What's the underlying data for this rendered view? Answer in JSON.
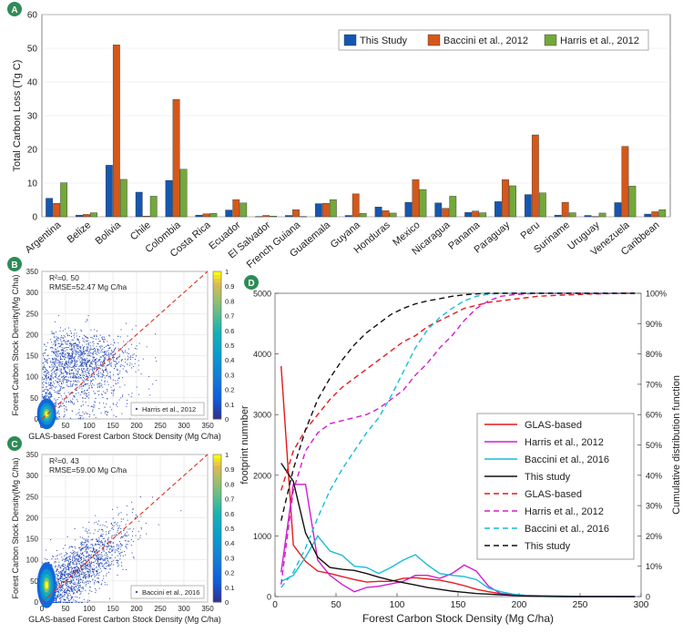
{
  "colors": {
    "this_study": "#1557b0",
    "baccini": "#d4581a",
    "harris": "#73a83a",
    "glas": "#e41a1c",
    "harris_curve": "#d11dd1",
    "baccini_curve": "#17bcd8",
    "this_curve": "#111111",
    "diag": "#e03020",
    "panel_badge": "#2e8b57"
  },
  "chart_data": [
    {
      "id": "A",
      "type": "bar",
      "panel_label": "A",
      "ylabel": "Total Carbon Loss (Tg C)",
      "ylim": [
        0,
        60
      ],
      "yticks": [
        0,
        10,
        20,
        30,
        40,
        50,
        60
      ],
      "categories": [
        "Argentina",
        "Belize",
        "Bolivia",
        "Chile",
        "Colombia",
        "Costa Rica",
        "Ecuador",
        "El Salvador",
        "French Guiana",
        "Guatemala",
        "Guyana",
        "Honduras",
        "Mexico",
        "Nicaragua",
        "Panama",
        "Paraguay",
        "Peru",
        "Suriname",
        "Uruguay",
        "Venezuela",
        "Caribbean"
      ],
      "series": [
        {
          "name": "This Study",
          "values": [
            5.5,
            0.5,
            15.3,
            7.3,
            10.8,
            0.5,
            2.0,
            0.1,
            0.4,
            3.9,
            0.4,
            2.9,
            4.3,
            4.1,
            1.3,
            4.5,
            6.6,
            0.5,
            0.4,
            4.2,
            0.8
          ]
        },
        {
          "name": "Baccini et al., 2012",
          "values": [
            4.0,
            0.7,
            51.0,
            0.2,
            34.8,
            0.9,
            5.1,
            0.4,
            2.1,
            4.0,
            6.8,
            1.8,
            11.0,
            2.5,
            1.7,
            11.0,
            24.3,
            4.3,
            0.1,
            20.9,
            1.5
          ]
        },
        {
          "name": "Harris et al., 2012",
          "values": [
            10.1,
            1.2,
            11.1,
            6.1,
            14.1,
            1.0,
            4.1,
            0.2,
            0.1,
            5.1,
            1.0,
            1.1,
            8.1,
            6.1,
            1.2,
            9.2,
            7.1,
            1.2,
            1.1,
            9.1,
            2.1
          ]
        }
      ]
    },
    {
      "id": "B",
      "type": "scatter",
      "panel_label": "B",
      "xlabel": "GLAS-based Forest Carbon Stock Density (Mg C/ha)",
      "ylabel": "Forest Carbon Stock Density(Mg C/ha)",
      "xlim": [
        0,
        350
      ],
      "ylim": [
        0,
        350
      ],
      "ticks": [
        0,
        50,
        100,
        150,
        200,
        250,
        300,
        350
      ],
      "stats": [
        "R²=0. 50",
        "RMSE=52.47 Mg C/ha"
      ],
      "legend": "Harris et al., 2012",
      "colorbar_ticks": [
        "0",
        "0.1",
        "0.2",
        "0.3",
        "0.4",
        "0.5",
        "0.6",
        "0.7",
        "0.8",
        "0.9",
        "1"
      ]
    },
    {
      "id": "C",
      "type": "scatter",
      "panel_label": "C",
      "xlabel": "GLAS-based Forest Carbon Stock Density (Mg C/ha)",
      "ylabel": "Forest Carbon Stock Density(Mg C/ha)",
      "xlim": [
        0,
        350
      ],
      "ylim": [
        0,
        350
      ],
      "ticks": [
        0,
        50,
        100,
        150,
        200,
        250,
        300,
        350
      ],
      "stats": [
        "R²=0. 43",
        "RMSE=59.00 Mg C/ha"
      ],
      "legend": "Baccini et al., 2016",
      "colorbar_ticks": [
        "0",
        "0.1",
        "0.2",
        "0.3",
        "0.4",
        "0.5",
        "0.6",
        "0.7",
        "0.8",
        "0.9",
        "1"
      ]
    },
    {
      "id": "D",
      "type": "line",
      "panel_label": "D",
      "xlabel": "Forest Carbon Stock Density (Mg C/ha)",
      "ylabel": "footprint numnber",
      "y2label": "Cumulative distribution function",
      "xlim": [
        0,
        300
      ],
      "ylim": [
        0,
        5000
      ],
      "xticks": [
        0,
        50,
        100,
        150,
        200,
        250,
        300
      ],
      "yticks": [
        0,
        1000,
        2000,
        3000,
        4000,
        5000
      ],
      "y2ticks": [
        "0",
        "10%",
        "20%",
        "30%",
        "40%",
        "50%",
        "60%",
        "70%",
        "80%",
        "90%",
        "100%"
      ],
      "x": [
        5,
        15,
        25,
        35,
        45,
        55,
        65,
        75,
        85,
        95,
        105,
        115,
        125,
        135,
        145,
        155,
        165,
        175,
        185,
        195,
        205,
        215,
        225,
        235,
        245,
        255,
        265,
        275,
        285,
        295
      ],
      "series": [
        {
          "name": "GLAS-based",
          "style": "solid",
          "values": [
            3800,
            850,
            580,
            420,
            380,
            330,
            280,
            240,
            250,
            250,
            300,
            310,
            290,
            270,
            230,
            180,
            120,
            80,
            50,
            30,
            20,
            15,
            10,
            8,
            5,
            3,
            2,
            1,
            0,
            0
          ]
        },
        {
          "name": "Harris et al., 2012",
          "style": "solid",
          "values": [
            400,
            1850,
            1850,
            600,
            350,
            200,
            80,
            150,
            170,
            210,
            250,
            350,
            350,
            300,
            380,
            520,
            420,
            170,
            50,
            20,
            10,
            5,
            3,
            2,
            0,
            0,
            0,
            0,
            0,
            0
          ]
        },
        {
          "name": "Baccini et al., 2016",
          "style": "solid",
          "values": [
            250,
            350,
            650,
            1000,
            750,
            680,
            500,
            480,
            380,
            480,
            600,
            690,
            520,
            380,
            350,
            330,
            280,
            140,
            80,
            40,
            20,
            10,
            5,
            2,
            0,
            0,
            0,
            0,
            0,
            0
          ]
        },
        {
          "name": "This study",
          "style": "solid",
          "values": [
            2200,
            1900,
            1050,
            650,
            480,
            450,
            430,
            380,
            320,
            270,
            230,
            190,
            150,
            120,
            90,
            70,
            50,
            40,
            30,
            20,
            10,
            5,
            2,
            0,
            0,
            0,
            0,
            0,
            0,
            0
          ]
        },
        {
          "name": "GLAS-based",
          "style": "dashed",
          "values": [
            0.35,
            0.48,
            0.55,
            0.6,
            0.65,
            0.69,
            0.72,
            0.75,
            0.78,
            0.81,
            0.84,
            0.86,
            0.89,
            0.91,
            0.93,
            0.95,
            0.96,
            0.97,
            0.975,
            0.98,
            0.985,
            0.99,
            0.992,
            0.994,
            0.995,
            0.997,
            0.998,
            0.999,
            1.0,
            1.0
          ]
        },
        {
          "name": "Harris et al., 2012",
          "style": "dashed",
          "values": [
            0.04,
            0.35,
            0.48,
            0.54,
            0.57,
            0.58,
            0.59,
            0.6,
            0.62,
            0.65,
            0.68,
            0.73,
            0.77,
            0.82,
            0.86,
            0.91,
            0.95,
            0.975,
            0.99,
            0.995,
            0.998,
            1.0,
            1.0,
            1.0,
            1.0,
            1.0,
            1.0,
            1.0,
            1.0,
            1.0
          ]
        },
        {
          "name": "Baccini et al., 2016",
          "style": "dashed",
          "values": [
            0.03,
            0.08,
            0.16,
            0.26,
            0.35,
            0.42,
            0.48,
            0.54,
            0.59,
            0.66,
            0.74,
            0.82,
            0.88,
            0.92,
            0.95,
            0.975,
            0.99,
            0.997,
            1.0,
            1.0,
            1.0,
            1.0,
            1.0,
            1.0,
            1.0,
            1.0,
            1.0,
            1.0,
            1.0,
            1.0
          ]
        },
        {
          "name": "This study",
          "style": "dashed",
          "values": [
            0.25,
            0.42,
            0.55,
            0.65,
            0.72,
            0.78,
            0.83,
            0.87,
            0.9,
            0.93,
            0.95,
            0.965,
            0.975,
            0.982,
            0.99,
            0.995,
            0.998,
            1.0,
            1.0,
            1.0,
            1.0,
            1.0,
            1.0,
            1.0,
            1.0,
            1.0,
            1.0,
            1.0,
            1.0,
            1.0
          ]
        }
      ]
    }
  ]
}
